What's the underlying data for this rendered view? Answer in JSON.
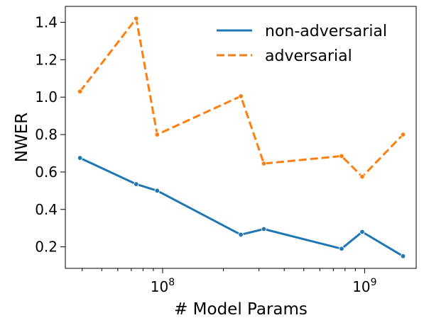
{
  "chart_data": {
    "type": "line",
    "xlabel": "# Model Params",
    "ylabel": "NWER",
    "xscale": "log",
    "xlim": [
      33000000,
      1800000000
    ],
    "ylim": [
      0.085,
      1.485
    ],
    "x_major_ticks": [
      {
        "value": 100000000,
        "base": "10",
        "exp": "8"
      },
      {
        "value": 1000000000,
        "base": "10",
        "exp": "9"
      }
    ],
    "y_ticks": [
      {
        "value": 0.2,
        "label": "0.2"
      },
      {
        "value": 0.4,
        "label": "0.4"
      },
      {
        "value": 0.6,
        "label": "0.6"
      },
      {
        "value": 0.8,
        "label": "0.8"
      },
      {
        "value": 1.0,
        "label": "1.0"
      },
      {
        "value": 1.2,
        "label": "1.2"
      },
      {
        "value": 1.4,
        "label": "1.4"
      }
    ],
    "grid": false,
    "legend_position": "top-right",
    "series": [
      {
        "name": "non-adversarial",
        "color": "#1f77b4",
        "dash": "solid",
        "x": [
          39000000,
          74000000,
          94000000,
          244000000,
          317000000,
          769000000,
          973000000,
          1550000000
        ],
        "y": [
          0.675,
          0.535,
          0.5,
          0.265,
          0.295,
          0.19,
          0.28,
          0.15
        ]
      },
      {
        "name": "adversarial",
        "color": "#ff7f0e",
        "dash": "dashed",
        "x": [
          39000000,
          74000000,
          94000000,
          244000000,
          317000000,
          769000000,
          973000000,
          1550000000
        ],
        "y": [
          1.03,
          1.42,
          0.8,
          1.005,
          0.645,
          0.685,
          0.575,
          0.8
        ]
      }
    ]
  }
}
